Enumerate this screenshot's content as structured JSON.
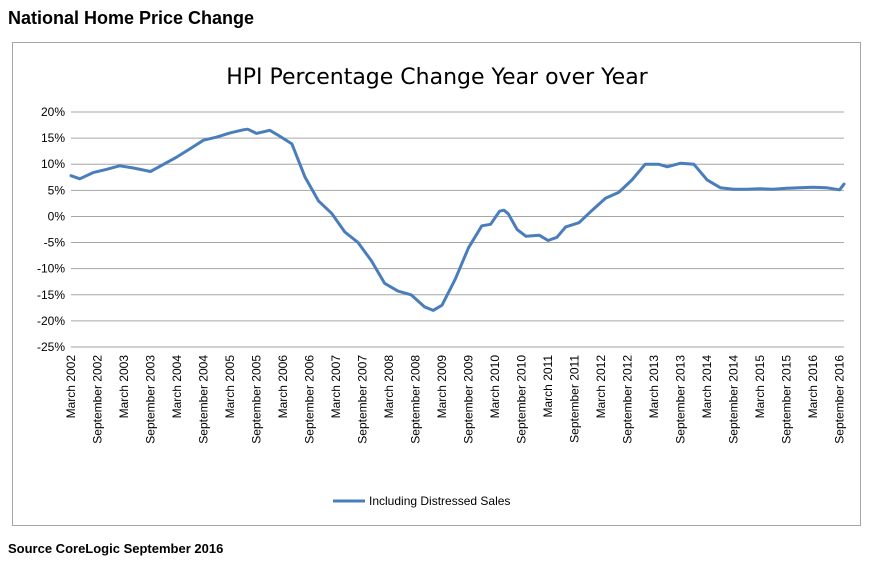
{
  "page": {
    "heading": "National Home Price Change",
    "source": "Source CoreLogic September 2016"
  },
  "chart_data": {
    "type": "line",
    "title": "HPI Percentage Change Year over Year",
    "xlabel": "",
    "ylabel": "",
    "ylim": [
      -25,
      20
    ],
    "y_ticks": [
      "20%",
      "15%",
      "10%",
      "5%",
      "0%",
      "-5%",
      "-10%",
      "-15%",
      "-20%",
      "-25%"
    ],
    "x_ticks": [
      "March 2002",
      "September 2002",
      "March 2003",
      "September 2003",
      "March 2004",
      "September 2004",
      "March 2005",
      "September 2005",
      "March 2006",
      "September 2006",
      "March 2007",
      "September 2007",
      "March 2008",
      "September 2008",
      "March 2009",
      "September 2009",
      "March 2010",
      "September 2010",
      "March 2011",
      "September 2011",
      "March 2012",
      "September 2012",
      "March 2013",
      "September 2013",
      "March 2014",
      "September 2014",
      "March 2015",
      "September 2015",
      "March 2016",
      "September 2016"
    ],
    "grid": true,
    "legend_position": "bottom",
    "series_color": "#4a7ebb",
    "series": [
      {
        "name": "Including Distressed Sales",
        "x": [
          "2002-03",
          "2002-05",
          "2002-08",
          "2002-11",
          "2003-02",
          "2003-05",
          "2003-09",
          "2003-12",
          "2004-03",
          "2004-06",
          "2004-09",
          "2004-12",
          "2005-03",
          "2005-06",
          "2005-07",
          "2005-09",
          "2005-12",
          "2006-02",
          "2006-05",
          "2006-08",
          "2006-11",
          "2007-02",
          "2007-05",
          "2007-08",
          "2007-11",
          "2008-02",
          "2008-05",
          "2008-08",
          "2008-11",
          "2009-01",
          "2009-03",
          "2009-06",
          "2009-09",
          "2009-12",
          "2010-02",
          "2010-04",
          "2010-05",
          "2010-06",
          "2010-08",
          "2010-10",
          "2011-01",
          "2011-03",
          "2011-05",
          "2011-07",
          "2011-10",
          "2012-01",
          "2012-04",
          "2012-07",
          "2012-10",
          "2013-01",
          "2013-04",
          "2013-06",
          "2013-09",
          "2013-12",
          "2014-03",
          "2014-06",
          "2014-09",
          "2014-12",
          "2015-03",
          "2015-06",
          "2015-09",
          "2015-12",
          "2016-03",
          "2016-06",
          "2016-09",
          "2016-10"
        ],
        "values": [
          7.8,
          7.2,
          8.4,
          9.0,
          9.7,
          9.3,
          8.6,
          10.0,
          11.4,
          13.0,
          14.6,
          15.2,
          16.0,
          16.6,
          16.7,
          15.9,
          16.5,
          15.5,
          13.9,
          7.5,
          3.0,
          0.6,
          -3.0,
          -5.0,
          -8.5,
          -12.8,
          -14.3,
          -15.0,
          -17.3,
          -18.0,
          -17.0,
          -12.0,
          -6.0,
          -1.8,
          -1.5,
          1.0,
          1.2,
          0.5,
          -2.5,
          -3.8,
          -3.6,
          -4.6,
          -4.0,
          -2.0,
          -1.2,
          1.2,
          3.5,
          4.6,
          7.0,
          10.0,
          10.0,
          9.5,
          10.2,
          10.0,
          7.0,
          5.5,
          5.2,
          5.2,
          5.3,
          5.2,
          5.4,
          5.5,
          5.6,
          5.5,
          5.1,
          6.2
        ]
      }
    ]
  }
}
